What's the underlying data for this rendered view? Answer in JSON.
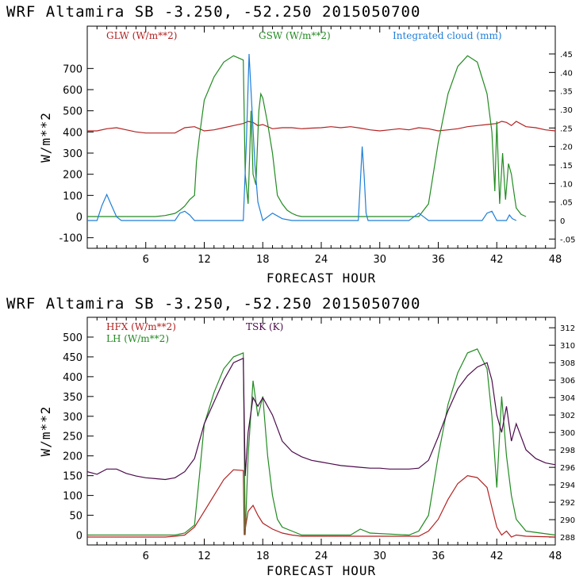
{
  "chart_data": [
    {
      "type": "line",
      "title": "WRF   Altamira  SB  -3.250, -52.250  2015050700",
      "xlabel": "FORECAST HOUR",
      "ylabel": "W/m**2",
      "xlim": [
        0,
        48
      ],
      "ylim": [
        -150,
        900
      ],
      "xticks": [
        "6",
        "12",
        "18",
        "24",
        "30",
        "36",
        "42",
        "48"
      ],
      "yticks": [
        "-100",
        "0",
        "100",
        "200",
        "300",
        "400",
        "500",
        "600",
        "700"
      ],
      "y2lim": [
        -0.075,
        0.525
      ],
      "y2ticks": [
        "-.05",
        "0",
        ".05",
        ".10",
        ".15",
        ".20",
        ".25",
        ".30",
        ".35",
        ".40",
        ".45"
      ],
      "series": [
        {
          "name": "GLW (W/m**2)",
          "color": "#b22222",
          "axis": "left",
          "x": [
            0,
            1,
            2,
            3,
            4,
            5,
            6,
            7,
            8,
            9,
            10,
            11,
            12,
            13,
            14,
            15,
            16,
            16.5,
            17,
            17.5,
            18,
            19,
            20,
            21,
            22,
            23,
            24,
            25,
            26,
            27,
            28,
            29,
            30,
            31,
            32,
            33,
            34,
            35,
            36,
            37,
            38,
            39,
            40,
            41,
            42,
            42.5,
            43,
            43.5,
            44,
            45,
            46,
            47,
            48
          ],
          "y": [
            405,
            405,
            415,
            420,
            410,
            400,
            395,
            395,
            395,
            395,
            420,
            425,
            405,
            410,
            420,
            430,
            440,
            450,
            445,
            430,
            435,
            415,
            420,
            420,
            415,
            418,
            420,
            425,
            420,
            425,
            418,
            410,
            405,
            410,
            415,
            410,
            420,
            415,
            405,
            410,
            415,
            425,
            430,
            435,
            440,
            450,
            445,
            430,
            450,
            425,
            420,
            410,
            405
          ]
        },
        {
          "name": "GSW (W/m**2)",
          "color": "#228b22",
          "axis": "left",
          "x": [
            0,
            7,
            8,
            9,
            9.5,
            10,
            10.5,
            11,
            11.2,
            11.5,
            12,
            13,
            14,
            15,
            16,
            16.2,
            16.5,
            16.8,
            17,
            17.3,
            17.6,
            17.8,
            18,
            18.5,
            19,
            19.5,
            20,
            20.5,
            21,
            21.5,
            22,
            34,
            35,
            36,
            37,
            38,
            39,
            40,
            41,
            41.5,
            41.8,
            42,
            42.3,
            42.6,
            42.9,
            43.2,
            43.5,
            43.8,
            44,
            44.5,
            45
          ],
          "y": [
            0,
            0,
            5,
            15,
            30,
            50,
            80,
            100,
            260,
            380,
            550,
            660,
            730,
            760,
            740,
            200,
            60,
            500,
            200,
            150,
            500,
            580,
            560,
            440,
            300,
            100,
            60,
            30,
            15,
            5,
            0,
            0,
            60,
            350,
            580,
            710,
            760,
            730,
            580,
            400,
            120,
            450,
            60,
            300,
            80,
            250,
            200,
            100,
            40,
            10,
            0
          ]
        },
        {
          "name": "Integrated cloud (mm)",
          "color": "#1e7ed8",
          "axis": "right",
          "x": [
            0,
            1,
            1.5,
            2,
            2.5,
            3,
            3.5,
            9,
            9.5,
            10,
            10.5,
            11,
            16,
            16.3,
            16.6,
            16.9,
            17.2,
            17.5,
            18,
            19,
            20,
            21,
            27.8,
            28,
            28.2,
            28.4,
            28.6,
            28.8,
            33,
            33.5,
            34,
            34.5,
            35,
            40.5,
            41,
            41.5,
            42,
            43,
            43.3,
            43.6,
            44
          ],
          "y": [
            0,
            0,
            0.04,
            0.07,
            0.04,
            0.01,
            0,
            0,
            0.02,
            0.025,
            0.015,
            0,
            0,
            0.2,
            0.45,
            0.3,
            0.15,
            0.05,
            0,
            0.02,
            0.005,
            0,
            0,
            0.1,
            0.2,
            0.12,
            0.02,
            0,
            0,
            0.01,
            0.02,
            0.01,
            0,
            0,
            0.02,
            0.025,
            0,
            0,
            0.015,
            0.005,
            0
          ]
        }
      ]
    },
    {
      "type": "line",
      "title": "WRF   Altamira  SB  -3.250, -52.250  2015050700",
      "xlabel": "FORECAST HOUR",
      "ylabel": "W/m**2",
      "xlim": [
        0,
        48
      ],
      "ylim": [
        -25,
        550
      ],
      "xticks": [
        "6",
        "12",
        "18",
        "24",
        "30",
        "36",
        "42",
        "48"
      ],
      "yticks": [
        "0",
        "50",
        "100",
        "150",
        "200",
        "250",
        "300",
        "350",
        "400",
        "450",
        "500"
      ],
      "y2lim": [
        287.1,
        313.2
      ],
      "y2ticks": [
        "288",
        "290",
        "292",
        "294",
        "296",
        "298",
        "300",
        "302",
        "304",
        "306",
        "308",
        "310",
        "312"
      ],
      "series": [
        {
          "name": "HFX (W/m**2)",
          "color": "#b22222",
          "axis": "left",
          "x": [
            0,
            8,
            9,
            10,
            11,
            12,
            13,
            14,
            15,
            16,
            16.1,
            16.5,
            17,
            17.5,
            18,
            19,
            20,
            21,
            22,
            34,
            35,
            36,
            37,
            38,
            39,
            40,
            41,
            41.5,
            42,
            42.5,
            43,
            43.5,
            44,
            45,
            48
          ],
          "y": [
            -5,
            -5,
            -3,
            0,
            20,
            60,
            100,
            140,
            165,
            163,
            0,
            60,
            75,
            50,
            30,
            15,
            5,
            0,
            -3,
            -3,
            10,
            40,
            90,
            130,
            150,
            145,
            120,
            70,
            20,
            0,
            10,
            -5,
            0,
            -3,
            -5
          ]
        },
        {
          "name": "LH (W/m**2)",
          "color": "#228b22",
          "axis": "left",
          "x": [
            0,
            8,
            9,
            10,
            11,
            11.5,
            12,
            13,
            14,
            15,
            16,
            16.2,
            16.5,
            17,
            17.5,
            18,
            18.5,
            19,
            19.5,
            20,
            21,
            22,
            27,
            28,
            29,
            33,
            34,
            35,
            36,
            37,
            38,
            39,
            40,
            41,
            41.5,
            42,
            42.5,
            43,
            43.5,
            44,
            45,
            48
          ],
          "y": [
            0,
            0,
            0,
            5,
            25,
            150,
            280,
            360,
            420,
            450,
            460,
            0,
            200,
            390,
            300,
            350,
            200,
            100,
            40,
            20,
            10,
            0,
            0,
            15,
            5,
            0,
            10,
            50,
            200,
            330,
            410,
            460,
            470,
            420,
            300,
            120,
            350,
            200,
            100,
            40,
            10,
            0
          ]
        },
        {
          "name": "TSK (K)",
          "color": "#4b0b4b",
          "axis": "right",
          "x": [
            0,
            1,
            2,
            3,
            4,
            5,
            6,
            7,
            8,
            9,
            10,
            11,
            11.5,
            12,
            13,
            14,
            15,
            16,
            16.2,
            16.5,
            17,
            17.5,
            18,
            19,
            20,
            21,
            22,
            23,
            24,
            25,
            26,
            27,
            28,
            29,
            30,
            31,
            32,
            33,
            34,
            35,
            36,
            37,
            38,
            39,
            40,
            41,
            41.5,
            42,
            42.5,
            43,
            43.5,
            44,
            45,
            46,
            47,
            48
          ],
          "y": [
            295.5,
            295.2,
            295.8,
            295.8,
            295.3,
            295,
            294.8,
            294.7,
            294.6,
            294.8,
            295.5,
            297,
            299,
            301,
            303.5,
            306,
            308,
            308.5,
            295,
            300,
            304,
            303,
            304,
            302,
            299,
            297.8,
            297.2,
            296.8,
            296.6,
            296.4,
            296.2,
            296.1,
            296,
            295.9,
            295.9,
            295.8,
            295.8,
            295.8,
            295.9,
            296.8,
            299.5,
            302.5,
            305,
            306.5,
            307.5,
            308,
            306,
            302,
            300,
            303,
            299,
            301,
            298,
            297,
            296.5,
            296.3
          ]
        }
      ]
    }
  ]
}
